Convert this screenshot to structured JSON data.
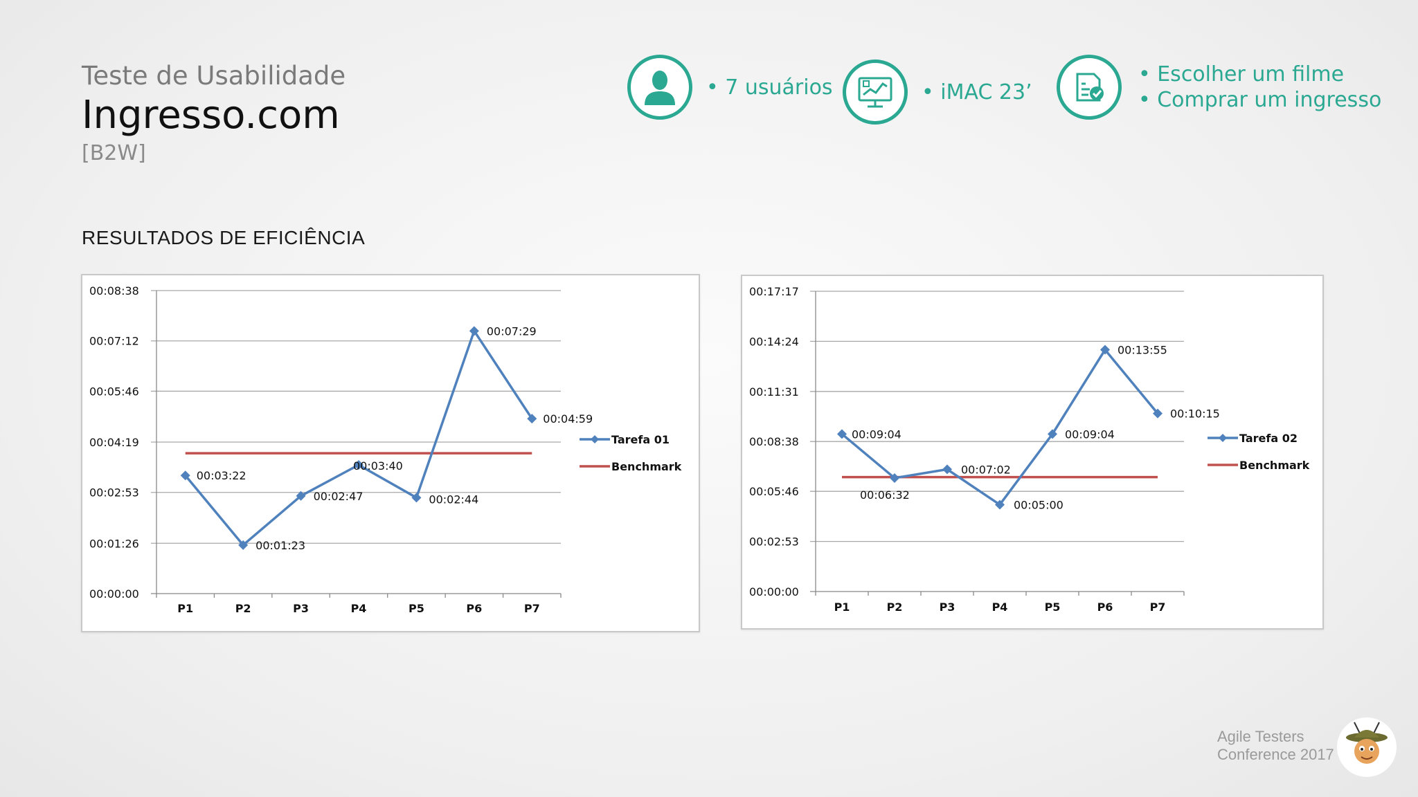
{
  "header": {
    "subtitle": "Teste de Usabilidade",
    "title": "Ingresso.com",
    "tag": "[B2W]"
  },
  "info": {
    "users": "• 7 usuários",
    "device": "• iMAC 23’",
    "task1": "• Escolher um filme",
    "task2": "• Comprar um ingresso"
  },
  "section_title": "RESULTADOS DE EFICIÊNCIA",
  "chart_data": [
    {
      "type": "line",
      "categories": [
        "P1",
        "P2",
        "P3",
        "P4",
        "P5",
        "P6",
        "P7"
      ],
      "series": [
        {
          "name": "Tarefa 01",
          "values": [
            202,
            83,
            167,
            220,
            164,
            449,
            299
          ],
          "labels": [
            "00:03:22",
            "00:01:23",
            "00:02:47",
            "00:03:40",
            "00:02:44",
            "00:07:29",
            "00:04:59"
          ]
        },
        {
          "name": "Benchmark",
          "values": [
            240,
            240,
            240,
            240,
            240,
            240,
            240
          ]
        }
      ],
      "ylim": [
        0,
        518
      ],
      "yticks": [
        0,
        86,
        173,
        259,
        346,
        432,
        518
      ],
      "yticklabels": [
        "00:00:00",
        "00:01:26",
        "00:02:53",
        "00:04:19",
        "00:05:46",
        "00:07:12",
        "00:08:38"
      ],
      "colors": {
        "series": "#4f81bd",
        "benchmark": "#c0504d"
      },
      "legend": "right"
    },
    {
      "type": "line",
      "categories": [
        "P1",
        "P2",
        "P3",
        "P4",
        "P5",
        "P6",
        "P7"
      ],
      "series": [
        {
          "name": "Tarefa 02",
          "values": [
            544,
            392,
            422,
            300,
            544,
            835,
            615
          ],
          "labels": [
            "00:09:04",
            "00:06:32",
            "00:07:02",
            "00:05:00",
            "00:09:04",
            "00:13:55",
            "00:10:15"
          ]
        },
        {
          "name": "Benchmark",
          "values": [
            395,
            395,
            395,
            395,
            395,
            395,
            395
          ]
        }
      ],
      "ylim": [
        0,
        1037
      ],
      "yticks": [
        0,
        173,
        346,
        518,
        691,
        864,
        1037
      ],
      "yticklabels": [
        "00:00:00",
        "00:02:53",
        "00:05:46",
        "00:08:38",
        "00:11:31",
        "00:14:24",
        "00:17:17"
      ],
      "colors": {
        "series": "#4f81bd",
        "benchmark": "#c0504d"
      },
      "legend": "right"
    }
  ],
  "footer": {
    "line1": "Agile Testers",
    "line2": "Conference 2017"
  }
}
